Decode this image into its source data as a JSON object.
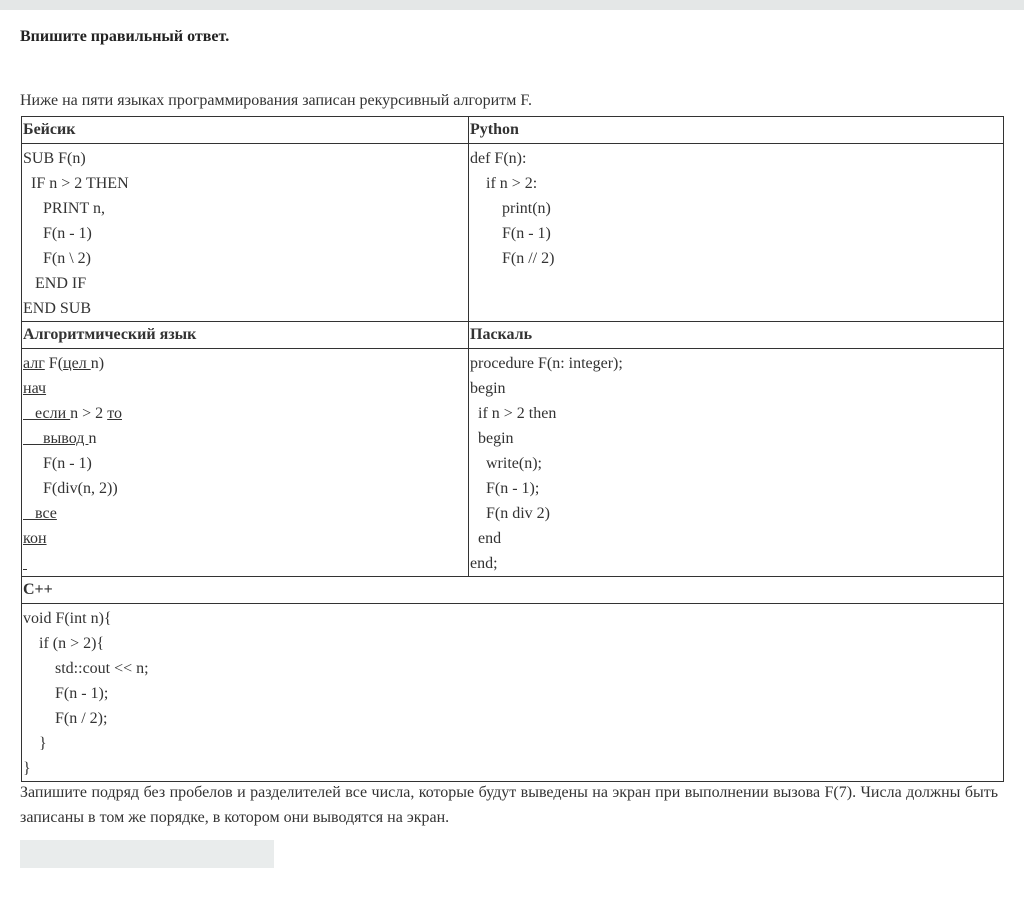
{
  "instruction": "Впишите правильный ответ.",
  "intro": "Ниже на пяти языках программирования записан рекурсивный алгоритм  F.",
  "basic": {
    "title": "Бейсик",
    "lines": [
      "SUB F(n)",
      "  IF n > 2 THEN",
      "     PRINT n,",
      "     F(n - 1)",
      "     F(n \\ 2)",
      "   END IF",
      "END SUB"
    ]
  },
  "python": {
    "title": "Python",
    "lines": [
      "def F(n):",
      "    if n > 2:",
      "        print(n)",
      "        F(n - 1)",
      "        F(n // 2)"
    ]
  },
  "algo": {
    "title": "Алгоритмический язык",
    "lines": [
      [
        {
          "t": "алг",
          "u": true
        },
        {
          "t": " F("
        },
        {
          "t": "цел ",
          "u": true
        },
        {
          "t": "n)"
        }
      ],
      [
        {
          "t": "нач",
          "u": true
        }
      ],
      [
        {
          "t": "   если ",
          "u": true
        },
        {
          "t": "n > 2 "
        },
        {
          "t": "то",
          "u": true
        }
      ],
      [
        {
          "t": "     вывод ",
          "u": true
        },
        {
          "t": "n"
        }
      ],
      [
        {
          "t": "     F(n - 1)"
        }
      ],
      [
        {
          "t": "     F(div(n, 2))"
        }
      ],
      [
        {
          "t": "   все",
          "u": true
        }
      ],
      [
        {
          "t": "кон",
          "u": true
        }
      ],
      [
        {
          "t": " ",
          "u": true
        }
      ]
    ]
  },
  "pascal": {
    "title": "Паскаль",
    "lines": [
      "procedure F(n: integer);",
      "begin",
      "  if n > 2 then",
      "  begin",
      "    write(n);",
      "    F(n - 1);",
      "    F(n div 2)",
      "  end",
      "end;"
    ]
  },
  "cpp": {
    "title": "C++",
    "lines": [
      "void F(int n){",
      "    if (n > 2){",
      "        std::cout << n;",
      "        F(n - 1);",
      "        F(n / 2);",
      "    }",
      "}"
    ]
  },
  "question": "Запишите подряд без пробелов и разделителей все числа, которые будут выведены на экран при выполнении вызова F(7). Числа должны быть записаны в том же порядке, в котором они выводятся на экран.",
  "answer": {
    "value": "",
    "placeholder": ""
  }
}
